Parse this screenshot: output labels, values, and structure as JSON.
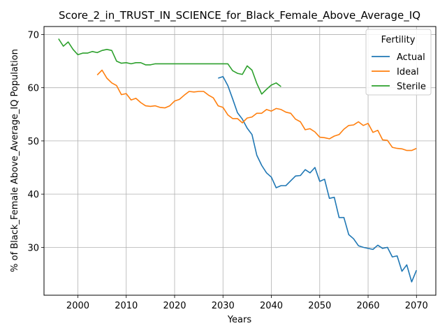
{
  "chart_data": {
    "type": "line",
    "title": "Score_2_in_TRUST_IN_SCIENCE_for_Black_Female_Above_Average_IQ",
    "xlabel": "Years",
    "ylabel": "% of Black_Female Above_Average_IQ Population",
    "xlim": [
      1993,
      2074
    ],
    "ylim": [
      21,
      71.5
    ],
    "xticks": [
      2000,
      2010,
      2020,
      2030,
      2040,
      2050,
      2060,
      2070
    ],
    "yticks": [
      30,
      40,
      50,
      60,
      70
    ],
    "grid": true,
    "legend": {
      "title": "Fertility",
      "placement": "top-right"
    },
    "series": [
      {
        "name": "Actual",
        "color": "#1f77b4",
        "x": [
          2029,
          2030,
          2031,
          2032,
          2033,
          2034,
          2035,
          2036,
          2037,
          2038,
          2039,
          2040,
          2041,
          2042,
          2043,
          2044,
          2045,
          2046,
          2047,
          2048,
          2049,
          2050,
          2051,
          2052,
          2053,
          2054,
          2055,
          2056,
          2057,
          2058,
          2059,
          2060,
          2061,
          2062,
          2063,
          2064,
          2065,
          2066,
          2067,
          2068,
          2069,
          2070
        ],
        "y": [
          61.8,
          62.1,
          60.4,
          57.9,
          55.3,
          54.1,
          52.4,
          51.2,
          47.3,
          45.4,
          44.0,
          43.2,
          41.2,
          41.6,
          41.6,
          42.5,
          43.4,
          43.5,
          44.6,
          44.0,
          45.0,
          42.4,
          42.8,
          39.2,
          39.4,
          35.6,
          35.6,
          32.4,
          31.6,
          30.3,
          30.0,
          29.8,
          29.6,
          30.4,
          29.8,
          30.0,
          28.2,
          28.4,
          25.5,
          26.7,
          23.5,
          25.7
        ]
      },
      {
        "name": "Ideal",
        "color": "#ff7f0e",
        "x": [
          2004,
          2005,
          2006,
          2007,
          2008,
          2009,
          2010,
          2011,
          2012,
          2013,
          2014,
          2015,
          2016,
          2017,
          2018,
          2019,
          2020,
          2021,
          2022,
          2023,
          2024,
          2025,
          2026,
          2027,
          2028,
          2029,
          2030,
          2031,
          2032,
          2033,
          2034,
          2035,
          2036,
          2037,
          2038,
          2039,
          2040,
          2041,
          2042,
          2043,
          2044,
          2045,
          2046,
          2047,
          2048,
          2049,
          2050,
          2051,
          2052,
          2053,
          2054,
          2055,
          2056,
          2057,
          2058,
          2059,
          2060,
          2061,
          2062,
          2063,
          2064,
          2065,
          2066,
          2067,
          2068,
          2069,
          2070
        ],
        "y": [
          62.4,
          63.3,
          61.8,
          60.9,
          60.4,
          58.7,
          58.9,
          57.7,
          58.0,
          57.2,
          56.6,
          56.5,
          56.6,
          56.3,
          56.2,
          56.6,
          57.5,
          57.8,
          58.6,
          59.3,
          59.2,
          59.3,
          59.3,
          58.6,
          58.1,
          56.6,
          56.3,
          54.9,
          54.2,
          54.2,
          53.4,
          54.3,
          54.5,
          55.2,
          55.2,
          55.9,
          55.6,
          56.1,
          55.9,
          55.4,
          55.2,
          54.1,
          53.6,
          52.1,
          52.3,
          51.7,
          50.7,
          50.6,
          50.4,
          50.9,
          51.2,
          52.2,
          52.9,
          53.0,
          53.6,
          52.9,
          53.3,
          51.6,
          52.0,
          50.2,
          50.1,
          48.8,
          48.6,
          48.5,
          48.2,
          48.2,
          48.6
        ]
      },
      {
        "name": "Sterile",
        "color": "#2ca02c",
        "x": [
          1996,
          1997,
          1998,
          1999,
          2000,
          2001,
          2002,
          2003,
          2004,
          2005,
          2006,
          2007,
          2008,
          2009,
          2010,
          2011,
          2012,
          2013,
          2014,
          2015,
          2016,
          2017,
          2018,
          2019,
          2020,
          2021,
          2022,
          2023,
          2024,
          2025,
          2026,
          2027,
          2028,
          2029,
          2030,
          2031,
          2032,
          2033,
          2034,
          2035,
          2036,
          2037,
          2038,
          2039,
          2040,
          2041,
          2042
        ],
        "y": [
          69.2,
          67.8,
          68.6,
          67.2,
          66.2,
          66.5,
          66.5,
          66.8,
          66.6,
          67.0,
          67.2,
          67.0,
          65.0,
          64.6,
          64.7,
          64.5,
          64.7,
          64.7,
          64.3,
          64.3,
          64.5,
          64.5,
          64.5,
          64.5,
          64.5,
          64.5,
          64.5,
          64.5,
          64.5,
          64.5,
          64.5,
          64.5,
          64.5,
          64.5,
          64.5,
          64.5,
          63.2,
          62.7,
          62.5,
          64.1,
          63.3,
          60.8,
          58.8,
          59.7,
          60.5,
          60.9,
          60.2
        ]
      }
    ]
  }
}
